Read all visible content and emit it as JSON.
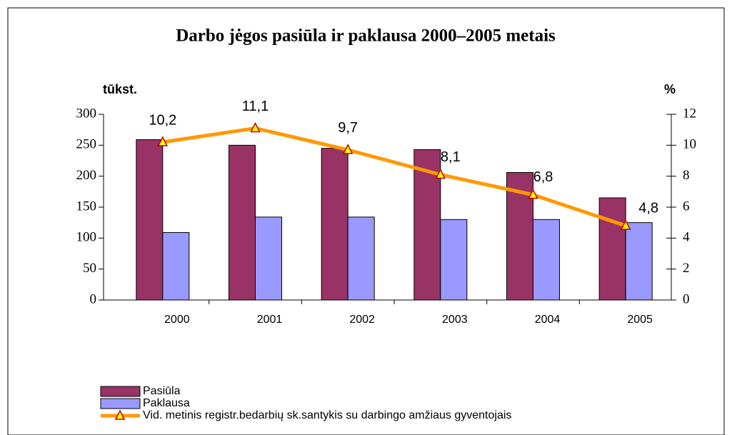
{
  "chart_data": {
    "type": "bar",
    "title": "Darbo jėgos pasiūla ir paklausa 2000–2005 metais",
    "ylabel": "tūkst.",
    "y2label": "%",
    "categories": [
      "2000",
      "2001",
      "2002",
      "2003",
      "2004",
      "2005"
    ],
    "series": [
      {
        "name": "Pasiūla",
        "type": "bar",
        "color": "#993366",
        "values": [
          259,
          250,
          245,
          243,
          206,
          165
        ]
      },
      {
        "name": "Paklausa",
        "type": "bar",
        "color": "#9999ff",
        "values": [
          109,
          134,
          134,
          130,
          130,
          125
        ]
      },
      {
        "name": "Vid. metinis registr.bedarbių sk.santykis su darbingo amžiaus gyventojais",
        "type": "line",
        "axis": "y2",
        "color": "#ff9900",
        "marker_color": "#ffff00",
        "values": [
          10.2,
          11.1,
          9.7,
          8.1,
          6.8,
          4.8
        ],
        "value_labels": [
          "10,2",
          "11,1",
          "9,7",
          "8,1",
          "6,8",
          "4,8"
        ]
      }
    ],
    "ylim": [
      0,
      300
    ],
    "yticks": [
      0,
      50,
      100,
      150,
      200,
      250,
      300
    ],
    "y2lim": [
      0,
      12
    ],
    "y2ticks": [
      0,
      2,
      4,
      6,
      8,
      10,
      12
    ],
    "legend": "bottom-left"
  }
}
